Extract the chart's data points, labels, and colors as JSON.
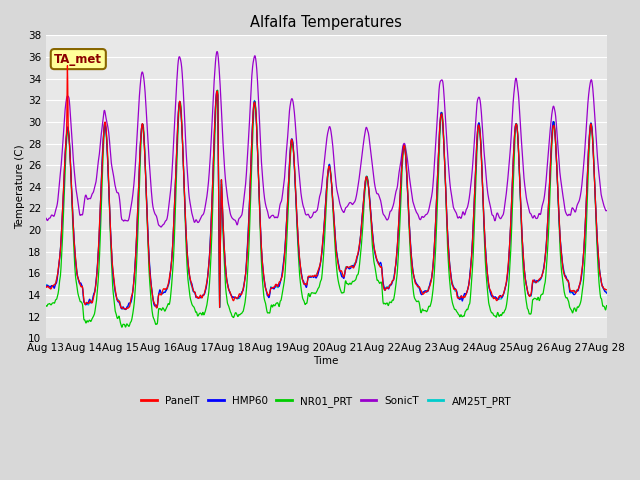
{
  "title": "Alfalfa Temperatures",
  "xlabel": "Time",
  "ylabel": "Temperature (C)",
  "ylim": [
    10,
    38
  ],
  "yticks": [
    10,
    12,
    14,
    16,
    18,
    20,
    22,
    24,
    26,
    28,
    30,
    32,
    34,
    36,
    38
  ],
  "annotation_text": "TA_met",
  "annotation_color": "#8B0000",
  "annotation_bg": "#FFFF99",
  "series_colors": {
    "PanelT": "#FF0000",
    "HMP60": "#0000FF",
    "NR01_PRT": "#00CC00",
    "SonicT": "#9900CC",
    "AM25T_PRT": "#00CCCC"
  },
  "legend_order": [
    "PanelT",
    "HMP60",
    "NR01_PRT",
    "SonicT",
    "AM25T_PRT"
  ],
  "bg_color": "#D8D8D8",
  "plot_bg_color": "#E8E8E8",
  "grid_color": "#FFFFFF",
  "n_days": 15,
  "start_day": 13,
  "points_per_day": 144
}
